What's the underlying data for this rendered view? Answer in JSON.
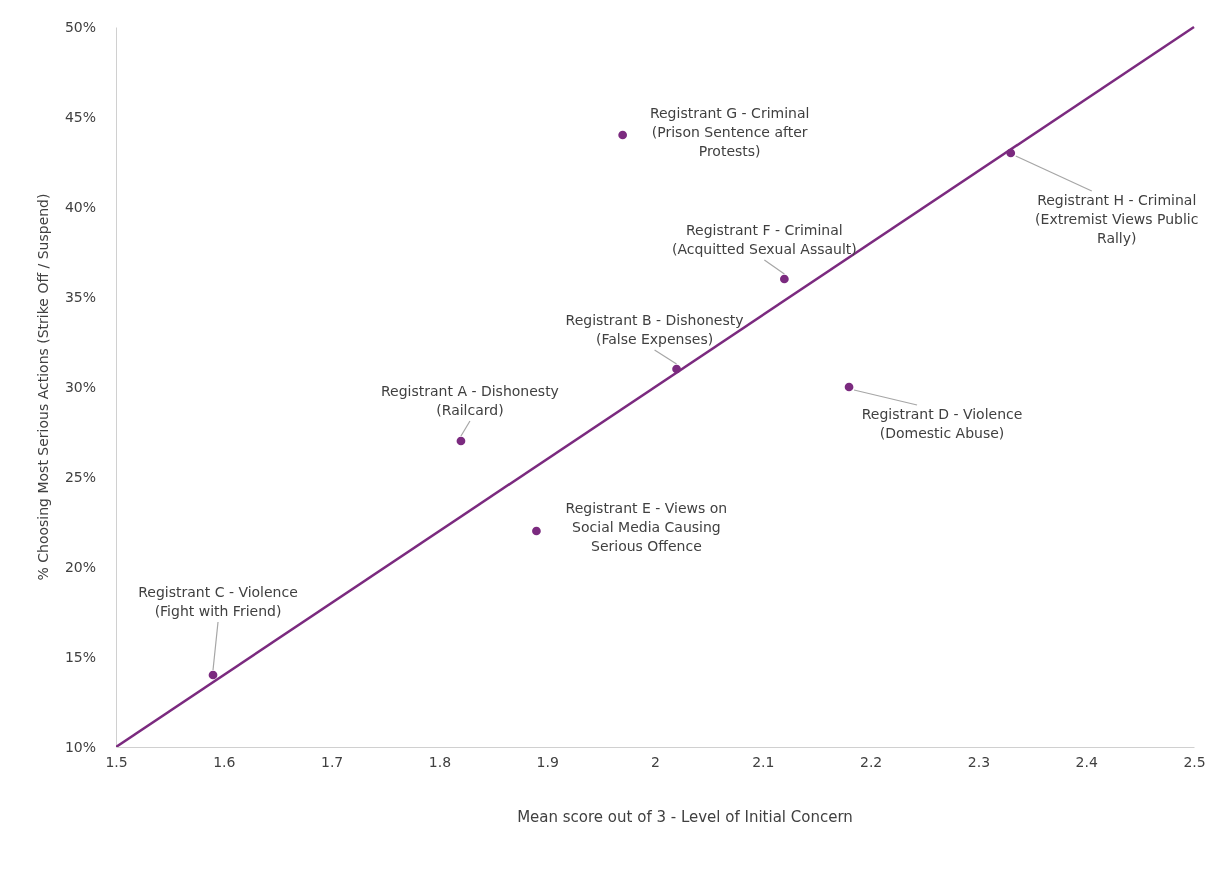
{
  "chart_data": {
    "type": "scatter",
    "xlabel": "Mean score out of 3 - Level of Initial Concern",
    "ylabel": "% Choosing Most Serious Actions (Strike Off / Suspend)",
    "xlim": [
      1.5,
      2.5
    ],
    "xticks": [
      1.5,
      1.6,
      1.7,
      1.8,
      1.9,
      2,
      2.1,
      2.2,
      2.3,
      2.4,
      2.5
    ],
    "ylim": [
      10,
      50
    ],
    "yticks": [
      {
        "value": 10,
        "label": "10%"
      },
      {
        "value": 15,
        "label": "15%"
      },
      {
        "value": 20,
        "label": "20%"
      },
      {
        "value": 25,
        "label": "25%"
      },
      {
        "value": 30,
        "label": "30%"
      },
      {
        "value": 35,
        "label": "35%"
      },
      {
        "value": 40,
        "label": "40%"
      },
      {
        "value": 45,
        "label": "45%"
      },
      {
        "value": 50,
        "label": "50%"
      }
    ],
    "grid": false,
    "marker": "circle",
    "series": [
      {
        "color": "#7b2a7f",
        "x": [
          1.82,
          2.02,
          1.59,
          2.18,
          1.89,
          2.12,
          1.97,
          2.33
        ],
        "values": [
          27,
          31,
          14,
          30,
          22,
          36,
          44,
          43
        ]
      },
      {
        "type": "line",
        "color": "#7b2a7f",
        "x": [
          1.5,
          2.5
        ],
        "values": [
          10,
          50
        ],
        "marker": "none"
      }
    ],
    "annotations": [
      {
        "text": "Registrant A - Dishonesty\n(Railcard)",
        "x": 1.82,
        "y": 27
      },
      {
        "text": "Registrant B - Dishonesty\n(False Expenses)",
        "x": 2.02,
        "y": 31
      },
      {
        "text": "Registrant C - Violence\n(Fight with Friend)",
        "x": 1.59,
        "y": 14
      },
      {
        "text": "Registrant D - Violence\n(Domestic Abuse)",
        "x": 2.18,
        "y": 30
      },
      {
        "text": "Registrant E - Views on\nSocial Media Causing\nSerious Offence",
        "x": 1.89,
        "y": 22
      },
      {
        "text": "Registrant F - Criminal\n(Acquitted Sexual Assault)",
        "x": 2.12,
        "y": 36
      },
      {
        "text": "Registrant G - Criminal\n(Prison Sentence after\nProtests)",
        "x": 1.97,
        "y": 44
      },
      {
        "text": "Registrant H - Criminal\n(Extremist Views Public\nRally)",
        "x": 2.33,
        "y": 43
      }
    ]
  }
}
